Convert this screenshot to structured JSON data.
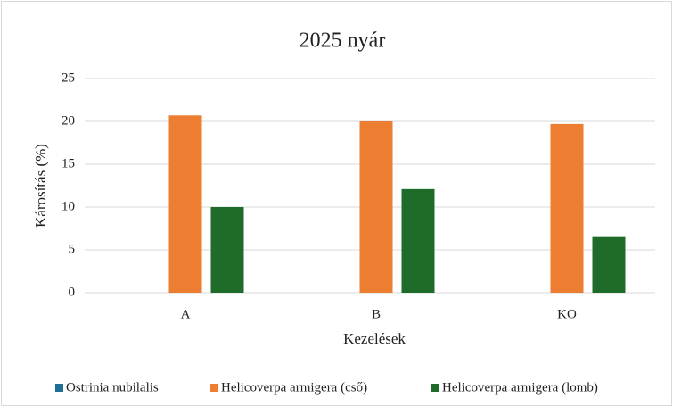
{
  "chart_data": {
    "type": "bar",
    "title": "2025 nyár",
    "xlabel": "Kezelések",
    "ylabel": "Károsítás (%)",
    "categories": [
      "A",
      "B",
      "KO"
    ],
    "series": [
      {
        "name": "Ostrinia nubilalis",
        "color": "#1f6f95",
        "values": [
          0,
          0,
          0
        ]
      },
      {
        "name": "Helicoverpa armigera (cső)",
        "color": "#ed7d31",
        "values": [
          20.7,
          20,
          19.7
        ]
      },
      {
        "name": "Helicoverpa armigera (lomb)",
        "color": "#1e6b2a",
        "values": [
          10,
          12.1,
          6.6
        ]
      }
    ],
    "ylim": [
      0,
      25
    ],
    "yticks": [
      0,
      5,
      10,
      15,
      20,
      25
    ],
    "grid": true,
    "legend": "bottom"
  }
}
